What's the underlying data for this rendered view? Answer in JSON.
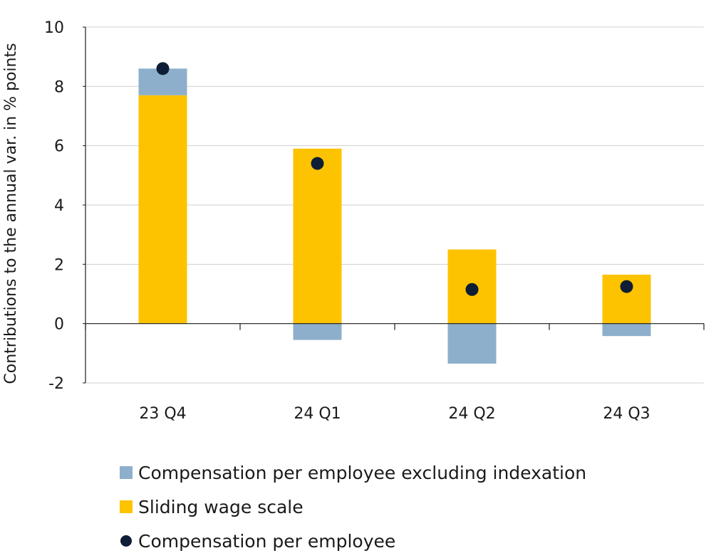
{
  "chart_data": {
    "type": "bar",
    "stacked": true,
    "categories": [
      "23 Q4",
      "24 Q1",
      "24 Q2",
      "24 Q3"
    ],
    "ylabel": "Contributions to the annual var. in % points",
    "ylim": [
      -2,
      10
    ],
    "yticks": [
      10,
      8,
      6,
      4,
      2,
      0,
      -2
    ],
    "grid": true,
    "series": [
      {
        "name": "Sliding wage scale",
        "kind": "bar",
        "color": "#FDC300",
        "values": [
          7.7,
          5.9,
          2.5,
          1.65
        ]
      },
      {
        "name": "Compensation per employee excluding indexation",
        "kind": "bar",
        "color": "#8DAFCB",
        "values": [
          0.9,
          -0.55,
          -1.35,
          -0.42
        ]
      },
      {
        "name": "Compensation per employee",
        "kind": "point",
        "color": "#0E1E36",
        "values": [
          8.6,
          5.4,
          1.15,
          1.25
        ]
      }
    ],
    "legend": {
      "placement": "bottom",
      "items": [
        {
          "label": "Compensation per employee excluding indexation",
          "marker": "square",
          "color": "#8DAFCB"
        },
        {
          "label": "Sliding wage scale",
          "marker": "square",
          "color": "#FDC300"
        },
        {
          "label": "Compensation per employee",
          "marker": "circle",
          "color": "#0E1E36"
        }
      ]
    }
  }
}
